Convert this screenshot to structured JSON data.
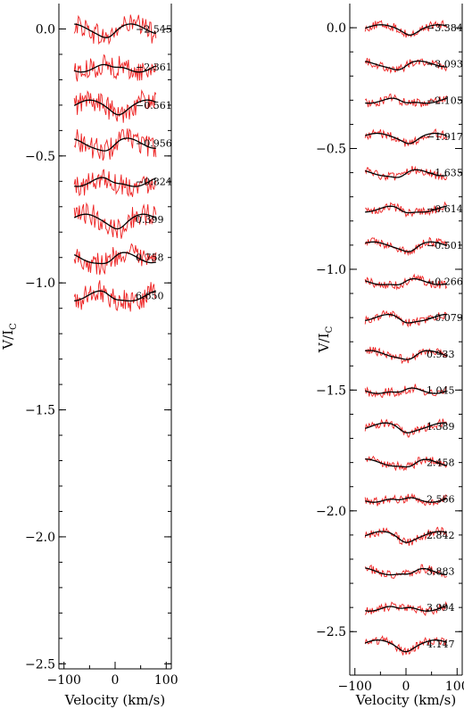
{
  "panels": [
    {
      "ylabel_main": "V/I",
      "ylabel_sub": "C",
      "xlabel": "Velocity (km/s)",
      "xlim": [
        -110,
        110
      ],
      "ylim": [
        -2.52,
        0.1
      ],
      "yticks": [
        0.0,
        -0.5,
        -1.0,
        -1.5,
        -2.0,
        -2.5
      ],
      "ytick_labels": [
        "0.0",
        "−0.5",
        "−1.0",
        "−1.5",
        "−2.0",
        "−2.5"
      ],
      "xticks": [
        -100,
        0,
        100
      ],
      "xtick_labels": [
        "−100",
        "0",
        "100"
      ],
      "profile_range": [
        -80,
        80
      ],
      "noise": 0.045,
      "profiles": [
        {
          "offset": 0.0,
          "label": "−2.545"
        },
        {
          "offset": -0.15,
          "label": "−2.361"
        },
        {
          "offset": -0.3,
          "label": "−0.561"
        },
        {
          "offset": -0.45,
          "label": "−0.956"
        },
        {
          "offset": -0.6,
          "label": "−0.824"
        },
        {
          "offset": -0.75,
          "label": "0.399"
        },
        {
          "offset": -0.9,
          "label": "0.758"
        },
        {
          "offset": -1.05,
          "label": "6.650"
        }
      ]
    },
    {
      "ylabel_main": "V/I",
      "ylabel_sub": "C",
      "xlabel": "Velocity (km/s)",
      "xlim": [
        -110,
        110
      ],
      "ylim": [
        -2.68,
        0.1
      ],
      "yticks": [
        0.0,
        -0.5,
        -1.0,
        -1.5,
        -2.0,
        -2.5
      ],
      "ytick_labels": [
        "0.0",
        "−0.5",
        "−1.0",
        "−1.5",
        "−2.0",
        "−2.5"
      ],
      "xticks": [
        -100,
        0,
        100
      ],
      "xtick_labels": [
        "−100",
        "0",
        "100"
      ],
      "profile_range": [
        -80,
        80
      ],
      "noise": 0.018,
      "profiles": [
        {
          "offset": 0.0,
          "label": "−3.384"
        },
        {
          "offset": -0.15,
          "label": "−3.093"
        },
        {
          "offset": -0.3,
          "label": "−2.105"
        },
        {
          "offset": -0.45,
          "label": "−1.917"
        },
        {
          "offset": -0.6,
          "label": "−1.635"
        },
        {
          "offset": -0.75,
          "label": "−0.614"
        },
        {
          "offset": -0.9,
          "label": "−0.501"
        },
        {
          "offset": -1.05,
          "label": "−0.266"
        },
        {
          "offset": -1.2,
          "label": "−0.079"
        },
        {
          "offset": -1.35,
          "label": "0.933"
        },
        {
          "offset": -1.5,
          "label": "1.045"
        },
        {
          "offset": -1.65,
          "label": "1.389"
        },
        {
          "offset": -1.8,
          "label": "2.458"
        },
        {
          "offset": -1.95,
          "label": "2.566"
        },
        {
          "offset": -2.1,
          "label": "2.842"
        },
        {
          "offset": -2.25,
          "label": "3.883"
        },
        {
          "offset": -2.4,
          "label": "3.994"
        },
        {
          "offset": -2.55,
          "label": "4.147"
        }
      ]
    }
  ],
  "colors": {
    "observed": "#ee2222",
    "model": "#000000",
    "axis": "#000000"
  }
}
